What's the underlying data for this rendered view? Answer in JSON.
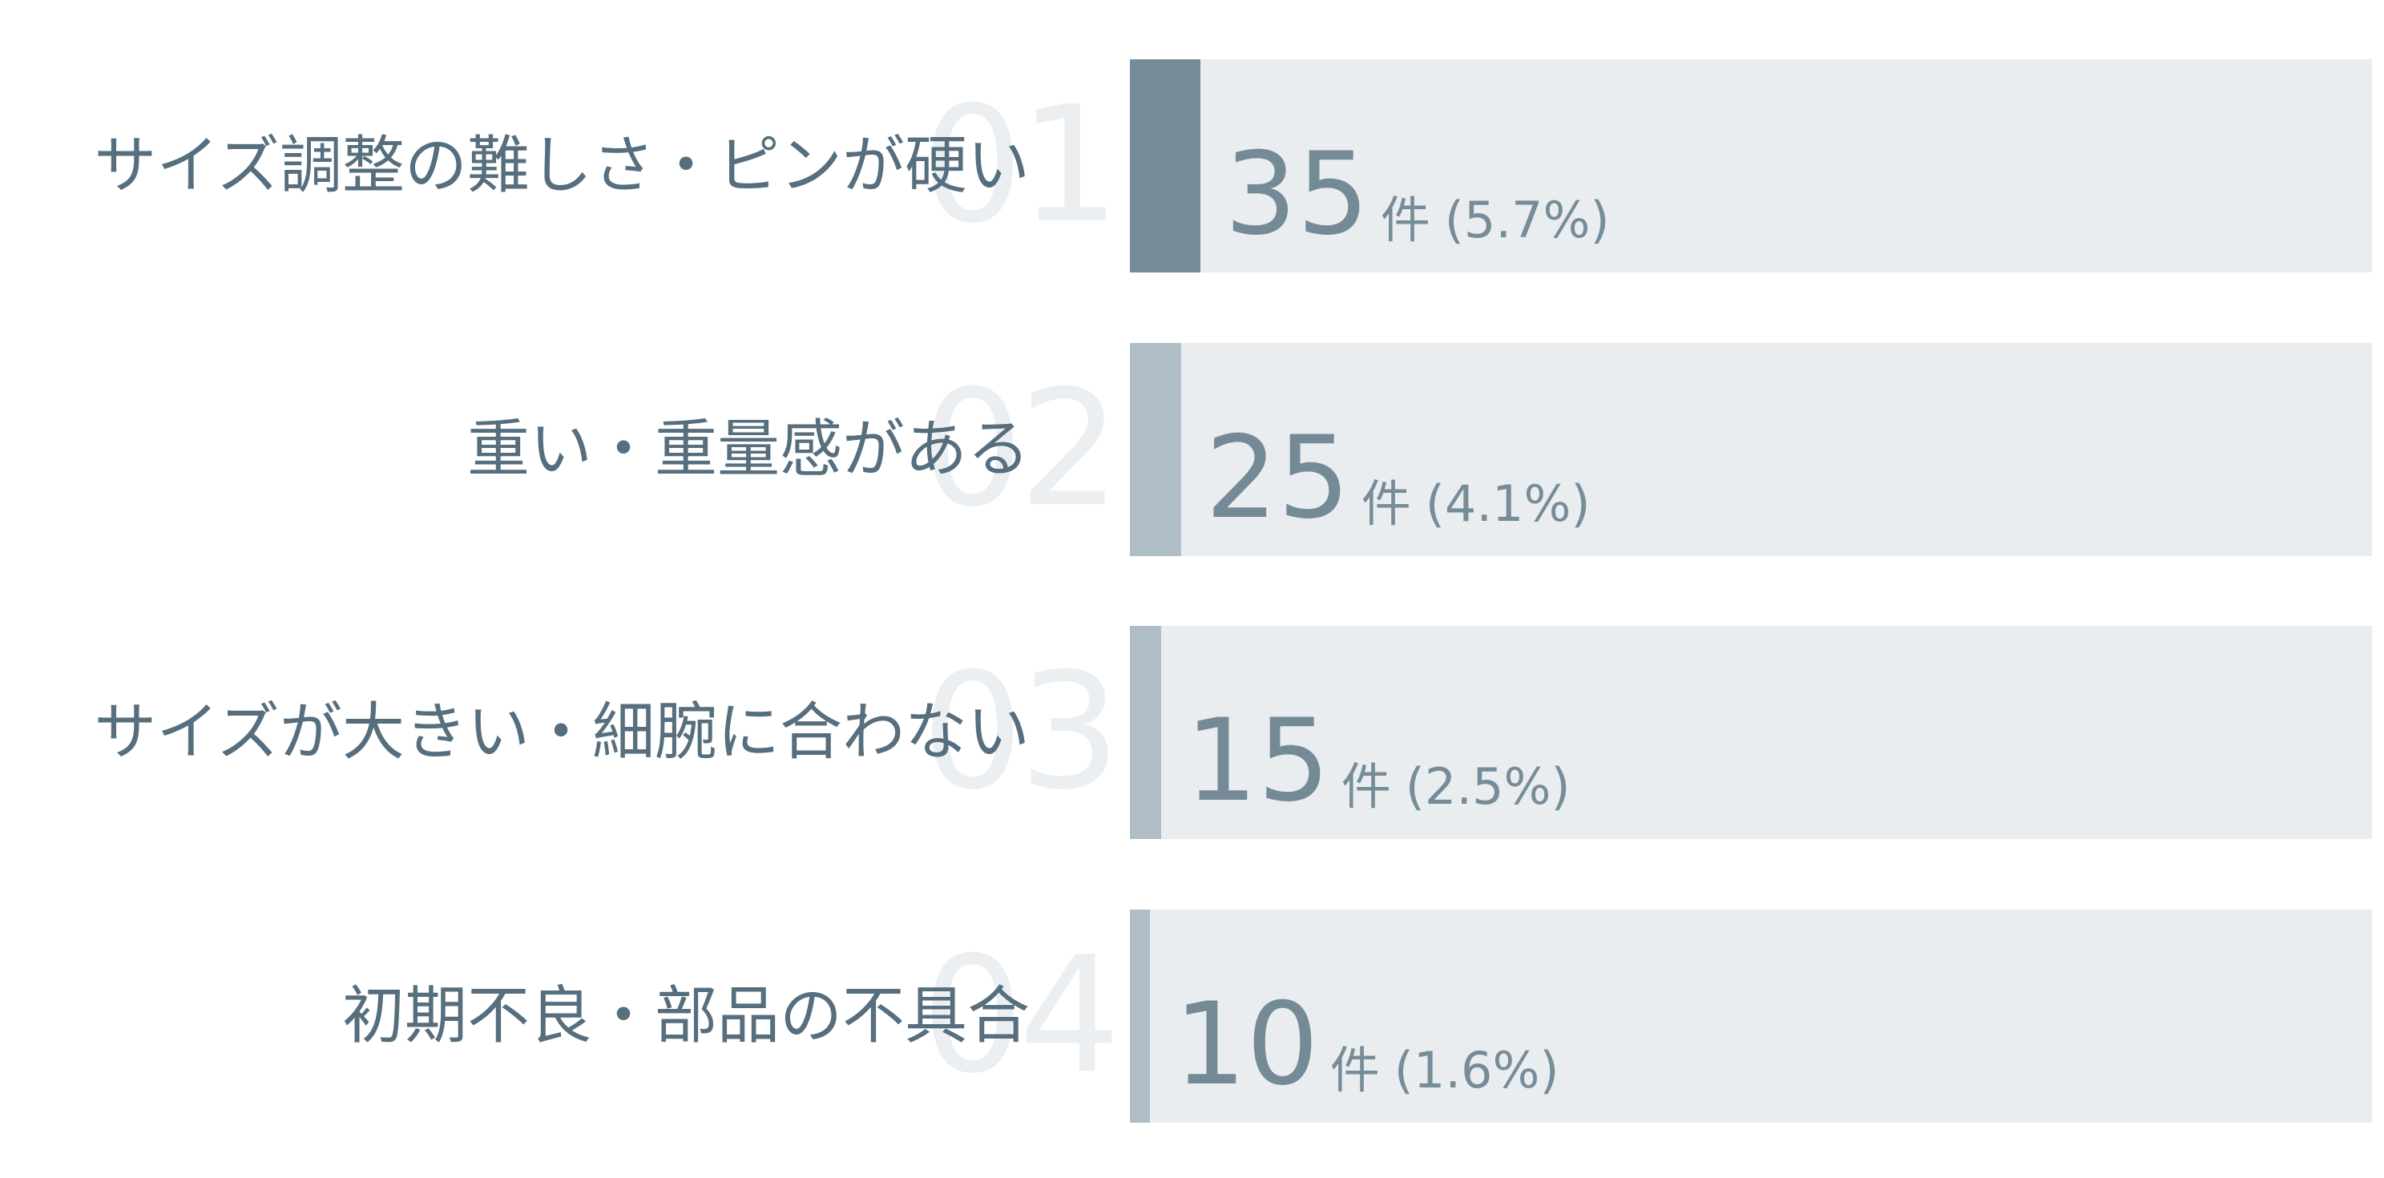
{
  "chart_data": {
    "type": "bar",
    "orientation": "horizontal",
    "categories": [
      "サイズ調整の難しさ・ピンが硬い",
      "重い・重量感がある",
      "サイズが大きい・細腕に合わない",
      "初期不良・部品の不具合"
    ],
    "ranks": [
      "01",
      "02",
      "03",
      "04"
    ],
    "values": [
      35,
      25,
      15,
      10
    ],
    "percents": [
      "(5.7%)",
      "(4.1%)",
      "(2.5%)",
      "(1.6%)"
    ],
    "unit": "件",
    "percent_values": [
      5.7,
      4.1,
      2.5,
      1.6
    ],
    "xlim": [
      0,
      100
    ],
    "colors": {
      "highlight_bar": "#768d99",
      "bar": "#afbdc6",
      "track": "#e9edf0",
      "label": "#566e7d",
      "value": "#758a97",
      "rank": "#eceff2"
    },
    "grid": false,
    "legend": "none"
  }
}
